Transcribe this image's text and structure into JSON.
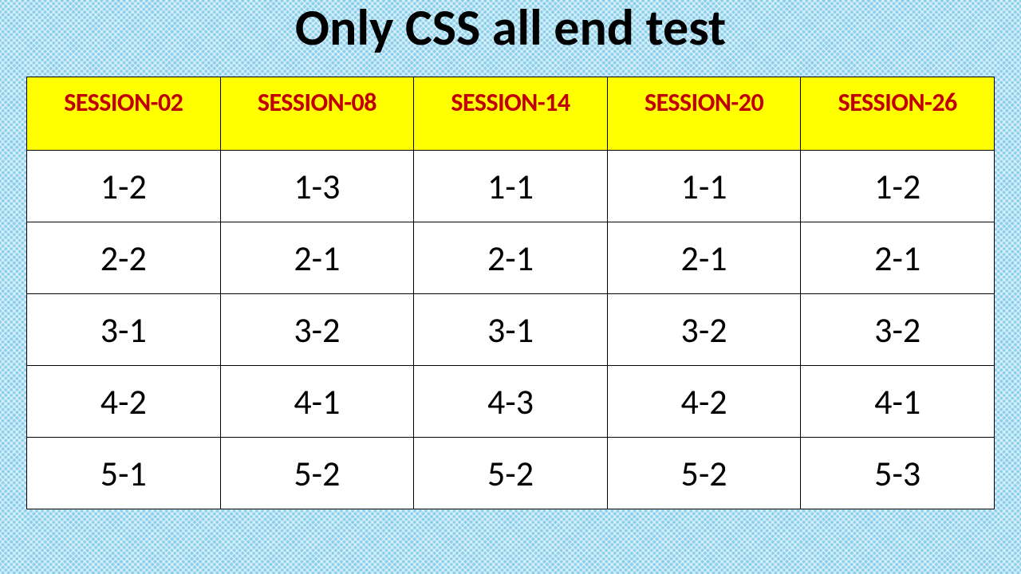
{
  "title": "Only CSS all end test",
  "table": {
    "type": "table",
    "background_color": "#ffffff",
    "header_bg_color": "#ffff00",
    "header_text_color": "#c00000",
    "border_color": "#000000",
    "header_fontsize": 32,
    "cell_fontsize": 44,
    "columns": [
      "SESSION-02",
      "SESSION-08",
      "SESSION-14",
      "SESSION-20",
      "SESSION-26"
    ],
    "rows": [
      [
        "1-2",
        "1-3",
        "1-1",
        "1-1",
        "1-2"
      ],
      [
        "2-2",
        "2-1",
        "2-1",
        "2-1",
        "2-1"
      ],
      [
        "3-1",
        "3-2",
        "3-1",
        "3-2",
        "3-2"
      ],
      [
        "4-2",
        "4-1",
        "4-3",
        "4-2",
        "4-1"
      ],
      [
        "5-1",
        "5-2",
        "5-2",
        "5-2",
        "5-3"
      ]
    ]
  },
  "page_background_color": "#87ceeb",
  "title_color": "#000000",
  "title_fontsize": 64
}
